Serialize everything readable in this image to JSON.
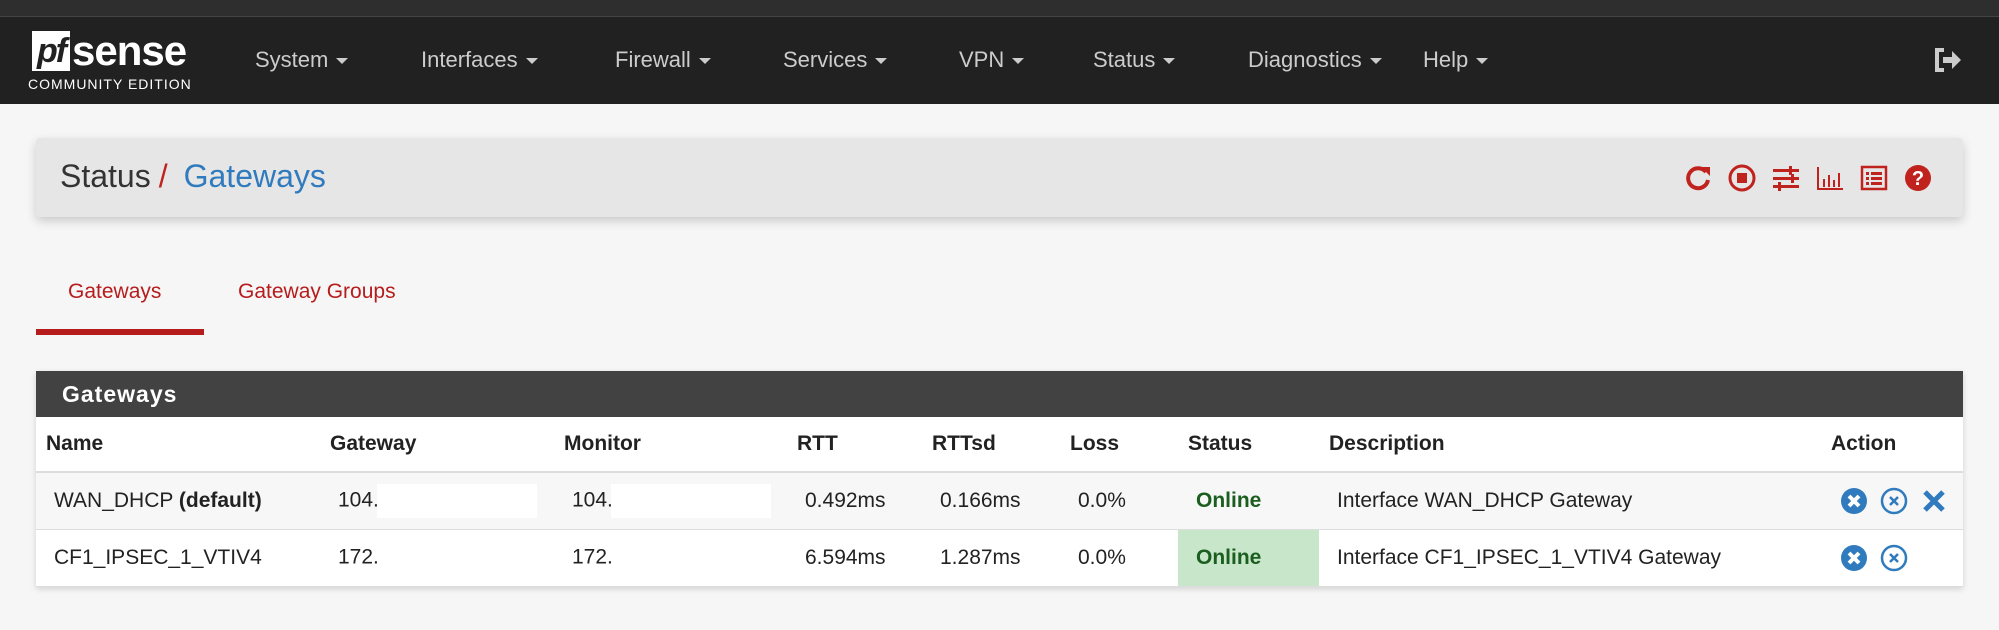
{
  "brand": {
    "logo_text": "pfsense",
    "edition": "COMMUNITY EDITION"
  },
  "nav": {
    "items": [
      "System",
      "Interfaces",
      "Firewall",
      "Services",
      "VPN",
      "Status",
      "Diagnostics",
      "Help"
    ],
    "logout_icon": "sign-out-icon"
  },
  "breadcrumb": {
    "parent": "Status",
    "separator": "/",
    "current": "Gateways",
    "icons": [
      "refresh-icon",
      "stop-circle-icon",
      "sliders-icon",
      "bar-chart-icon",
      "list-icon",
      "help-icon"
    ]
  },
  "tabs": [
    {
      "label": "Gateways",
      "active": true
    },
    {
      "label": "Gateway Groups",
      "active": false
    }
  ],
  "panel": {
    "title": "Gateways",
    "columns": [
      "Name",
      "Gateway",
      "Monitor",
      "RTT",
      "RTTsd",
      "Loss",
      "Status",
      "Description",
      "Action"
    ],
    "rows": [
      {
        "name": "WAN_DHCP",
        "name_suffix": "(default)",
        "gateway": "104.",
        "monitor": "104.",
        "rtt": "0.492ms",
        "rttsd": "0.166ms",
        "loss": "0.0%",
        "status": "Online",
        "description": "Interface WAN_DHCP Gateway",
        "actions": [
          "mark-down-icon",
          "disable-icon",
          "delete-icon"
        ]
      },
      {
        "name": "CF1_IPSEC_1_VTIV4",
        "name_suffix": "",
        "gateway": "172.",
        "monitor": "172.",
        "rtt": "6.594ms",
        "rttsd": "1.287ms",
        "loss": "0.0%",
        "status": "Online",
        "description": "Interface CF1_IPSEC_1_VTIV4 Gateway",
        "actions": [
          "mark-down-icon",
          "disable-icon"
        ]
      }
    ]
  },
  "colors": {
    "navbar": "#212121",
    "accent_red": "#b71c1c",
    "link_blue": "#2f7bbd",
    "online_bg": "#c8e6c9",
    "online_text": "#1b5e20",
    "panel_header": "#424242"
  }
}
